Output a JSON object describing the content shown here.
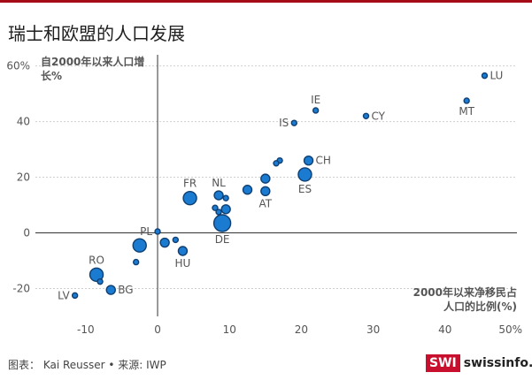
{
  "header": {
    "title": "瑞士和欧盟的人口发展"
  },
  "footer": {
    "credit": "图表： Kai Reusser • 来源: IWP"
  },
  "logo": {
    "mark": "SWI",
    "name": "swissinfo.ch"
  },
  "colors": {
    "accent": "#a50a17",
    "dot_fill": "#1a7bd0",
    "dot_stroke": "#0f3f73",
    "axis": "#333333",
    "grid": "#cfcfcf"
  },
  "chart_data": {
    "type": "scatter",
    "title": "瑞士和欧盟的人口发展",
    "ylabel_lines": [
      "自2000年以来人口增",
      "长%"
    ],
    "xlabel_lines": [
      "2000年以来净移民占",
      "人口的比例(%)"
    ],
    "xlim": [
      -17,
      50
    ],
    "ylim": [
      -30,
      64
    ],
    "x_ticks": [
      -10,
      0,
      10,
      20,
      30,
      40,
      50
    ],
    "x_tick_labels": [
      "-10",
      "0",
      "10",
      "20",
      "30",
      "40",
      "50%"
    ],
    "y_ticks": [
      -20,
      0,
      20,
      40,
      60
    ],
    "y_tick_labels": [
      "-20",
      "0",
      "20",
      "40",
      "60%"
    ],
    "grid": true,
    "points": [
      {
        "x": 45.5,
        "y": 56.5,
        "size": "small",
        "label": "LU",
        "label_pos": "right"
      },
      {
        "x": 43.0,
        "y": 47.5,
        "size": "small",
        "label": "MT",
        "label_pos": "below"
      },
      {
        "x": 22.0,
        "y": 44.0,
        "size": "small",
        "label": "IE",
        "label_pos": "above"
      },
      {
        "x": 29.0,
        "y": 42.0,
        "size": "small",
        "label": "CY",
        "label_pos": "right"
      },
      {
        "x": 19.0,
        "y": 39.5,
        "size": "small",
        "label": "IS",
        "label_pos": "left"
      },
      {
        "x": 21.0,
        "y": 26.0,
        "size": "medium",
        "label": "CH",
        "label_pos": "right"
      },
      {
        "x": 20.5,
        "y": 21.0,
        "size": "large",
        "label": "ES",
        "label_pos": "below"
      },
      {
        "x": 17.0,
        "y": 26.0,
        "size": "small",
        "label": "",
        "label_pos": ""
      },
      {
        "x": 16.5,
        "y": 25.0,
        "size": "small",
        "label": "",
        "label_pos": ""
      },
      {
        "x": 15.0,
        "y": 19.5,
        "size": "medium",
        "label": "",
        "label_pos": ""
      },
      {
        "x": 15.0,
        "y": 15.0,
        "size": "medium",
        "label": "AT",
        "label_pos": "below"
      },
      {
        "x": 12.5,
        "y": 15.5,
        "size": "medium",
        "label": "",
        "label_pos": ""
      },
      {
        "x": 8.5,
        "y": 13.5,
        "size": "medium",
        "label": "NL",
        "label_pos": "above"
      },
      {
        "x": 9.5,
        "y": 12.5,
        "size": "small",
        "label": "",
        "label_pos": ""
      },
      {
        "x": 4.5,
        "y": 12.5,
        "size": "large",
        "label": "FR",
        "label_pos": "above"
      },
      {
        "x": 8.0,
        "y": 9.0,
        "size": "small",
        "label": "",
        "label_pos": ""
      },
      {
        "x": 9.5,
        "y": 8.5,
        "size": "medium",
        "label": "",
        "label_pos": ""
      },
      {
        "x": 8.5,
        "y": 7.5,
        "size": "small",
        "label": "",
        "label_pos": ""
      },
      {
        "x": 9.0,
        "y": 3.5,
        "size": "xlarge",
        "label": "DE",
        "label_pos": "below"
      },
      {
        "x": 0.0,
        "y": 0.5,
        "size": "small",
        "label": "PL",
        "label_pos": "left"
      },
      {
        "x": 1.0,
        "y": -3.5,
        "size": "medium",
        "label": "",
        "label_pos": ""
      },
      {
        "x": 2.5,
        "y": -2.5,
        "size": "small",
        "label": "",
        "label_pos": ""
      },
      {
        "x": -2.5,
        "y": -4.5,
        "size": "large",
        "label": "",
        "label_pos": ""
      },
      {
        "x": 3.5,
        "y": -6.5,
        "size": "medium",
        "label": "HU",
        "label_pos": "below"
      },
      {
        "x": -3.0,
        "y": -10.5,
        "size": "small",
        "label": "",
        "label_pos": ""
      },
      {
        "x": -8.5,
        "y": -15.0,
        "size": "large",
        "label": "RO",
        "label_pos": "above"
      },
      {
        "x": -8.0,
        "y": -17.5,
        "size": "small",
        "label": "",
        "label_pos": ""
      },
      {
        "x": -6.5,
        "y": -20.5,
        "size": "medium",
        "label": "BG",
        "label_pos": "right"
      },
      {
        "x": -11.5,
        "y": -22.5,
        "size": "small",
        "label": "LV",
        "label_pos": "left"
      }
    ]
  }
}
